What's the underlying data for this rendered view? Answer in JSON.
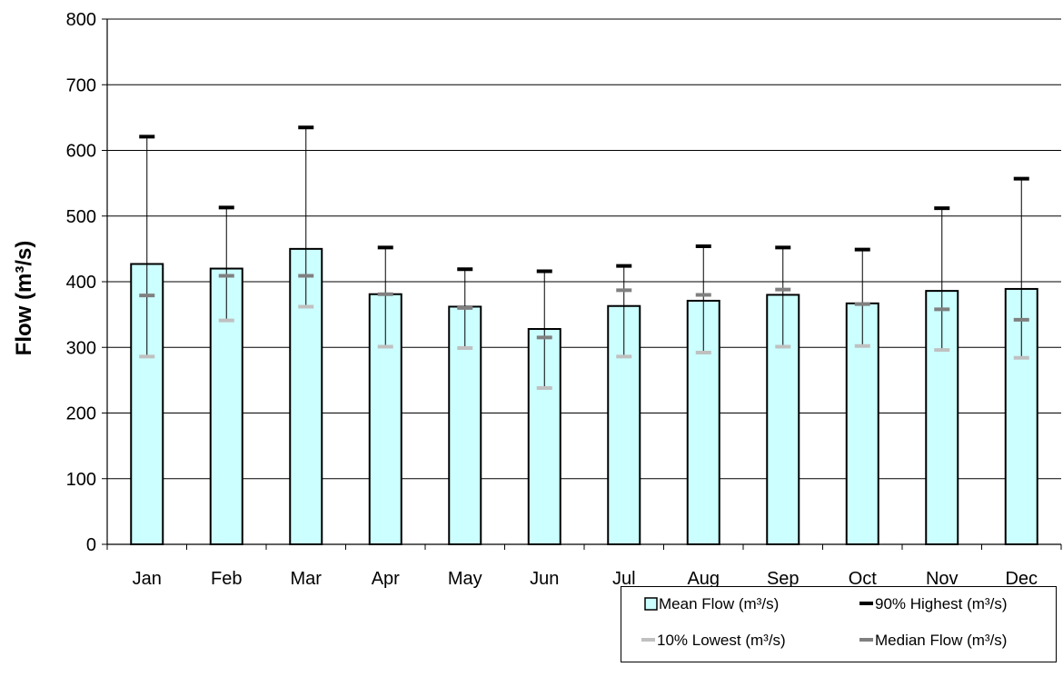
{
  "chart_data": {
    "type": "bar",
    "title": "",
    "xlabel": "",
    "ylabel": "Flow (m³/s)",
    "ylim": [
      0,
      800
    ],
    "yticks": [
      0,
      100,
      200,
      300,
      400,
      500,
      600,
      700,
      800
    ],
    "grid": true,
    "legend_position": "bottom-right",
    "categories": [
      "Jan",
      "Feb",
      "Mar",
      "Apr",
      "May",
      "Jun",
      "Jul",
      "Aug",
      "Sep",
      "Oct",
      "Nov",
      "Dec"
    ],
    "series": [
      {
        "name": "Mean Flow (m³/s)",
        "kind": "bar",
        "color": "#ccffff",
        "values": [
          427,
          420,
          450,
          381,
          362,
          328,
          363,
          371,
          380,
          367,
          386,
          389
        ]
      },
      {
        "name": "90% Highest (m³/s)",
        "kind": "marker",
        "color": "#000000",
        "values": [
          621,
          513,
          635,
          452,
          419,
          416,
          424,
          454,
          452,
          449,
          512,
          557
        ]
      },
      {
        "name": "10% Lowest (m³/s)",
        "kind": "marker",
        "color": "#c0c0c0",
        "values": [
          286,
          341,
          362,
          301,
          299,
          238,
          286,
          292,
          301,
          302,
          296,
          284
        ]
      },
      {
        "name": "Median Flow (m³/s)",
        "kind": "marker",
        "color": "#808080",
        "values": [
          379,
          409,
          409,
          381,
          360,
          315,
          387,
          380,
          388,
          366,
          358,
          342
        ]
      }
    ]
  }
}
